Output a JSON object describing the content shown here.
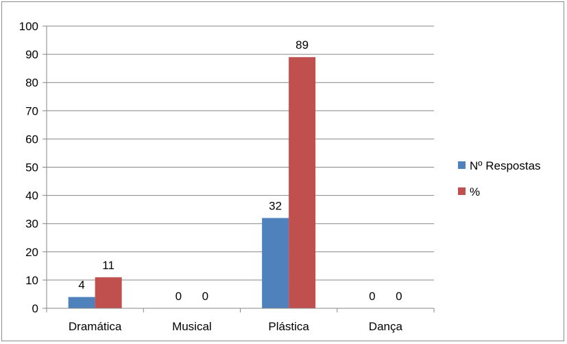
{
  "chart_data": {
    "type": "bar",
    "categories": [
      "Dramática",
      "Musical",
      "Plástica",
      "Dança"
    ],
    "series": [
      {
        "name": "Nº Respostas",
        "values": [
          4,
          0,
          32,
          0
        ],
        "color": "#4f81bd"
      },
      {
        "name": "%",
        "values": [
          11,
          0,
          89,
          0
        ],
        "color": "#c0504d"
      }
    ],
    "ylim": [
      0,
      100
    ],
    "yticks": [
      0,
      10,
      20,
      30,
      40,
      50,
      60,
      70,
      80,
      90,
      100
    ],
    "grid": true,
    "legend": "right",
    "title": "",
    "xlabel": "",
    "ylabel": ""
  }
}
